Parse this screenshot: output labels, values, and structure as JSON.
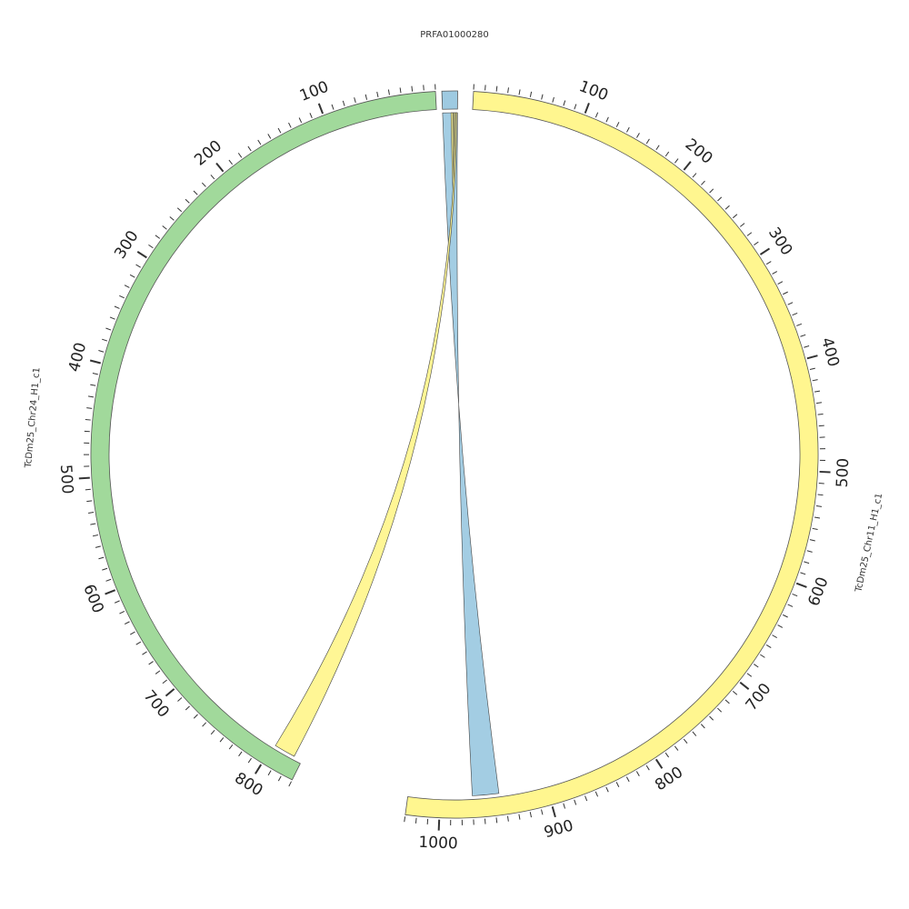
{
  "chart_data": {
    "type": "chord",
    "segments": [
      {
        "id": "prfa",
        "label": "PRFA01000280",
        "length": 30,
        "color": "#9ecae1"
      },
      {
        "id": "chr11",
        "label": "TcDm25_Chr11_H1_c1",
        "length": 1030,
        "color": "#fff68f"
      },
      {
        "id": "chr24",
        "label": "TcDm25_Chr24_H1_c1",
        "length": 830,
        "color": "#a1d99b"
      }
    ],
    "major_tick_interval": 100,
    "minor_tick_interval": 10,
    "links": [
      {
        "from": {
          "segment": "prfa",
          "start": 0,
          "end": 30
        },
        "to": {
          "segment": "chr11",
          "start": 945,
          "end": 970
        },
        "color": "#9ecae1"
      },
      {
        "from": {
          "segment": "prfa",
          "start": 22,
          "end": 25
        },
        "to": {
          "segment": "prfa",
          "start": 17,
          "end": 21
        },
        "color": "#fff68f"
      },
      {
        "from": {
          "segment": "chr24",
          "start": 802,
          "end": 822
        },
        "to": {
          "segment": "prfa",
          "start": 26,
          "end": 29
        },
        "color": "#fff68f"
      }
    ],
    "title": "",
    "legend": "none"
  }
}
